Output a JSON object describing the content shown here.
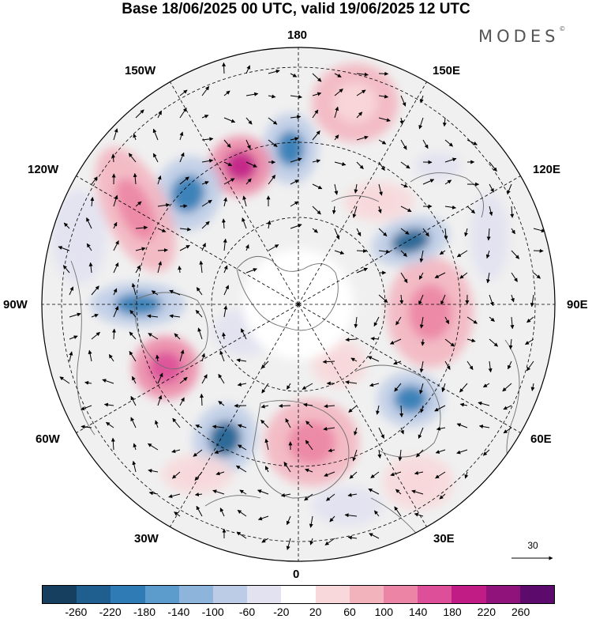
{
  "title": "Base 18/06/2025 00 UTC, valid 19/06/2025 12 UTC",
  "brand": "MODES",
  "brand_mark": "©",
  "longitude_labels": {
    "top": "180",
    "bottom": "0",
    "left": "90W",
    "right": "90E",
    "upper_left_1": "150W",
    "upper_left_2": "120W",
    "upper_right_1": "150E",
    "upper_right_2": "120E",
    "lower_left_1": "60W",
    "lower_left_2": "30W",
    "lower_right_1": "60E",
    "lower_right_2": "30E"
  },
  "reference_vector": {
    "value": "30"
  },
  "colorbar": {
    "colors": [
      "#163f5f",
      "#1f5f8f",
      "#2f7bb5",
      "#5c9ccc",
      "#8db4da",
      "#bccbe6",
      "#e2e2f1",
      "#ffffff",
      "#f8d8da",
      "#f3b3bd",
      "#ec85a5",
      "#dd4f99",
      "#c11c86",
      "#90137b",
      "#5c0a6c"
    ],
    "ticks": [
      "-260",
      "-220",
      "-180",
      "-140",
      "-100",
      "-60",
      "-20",
      "20",
      "60",
      "100",
      "140",
      "180",
      "220",
      "260"
    ]
  }
}
